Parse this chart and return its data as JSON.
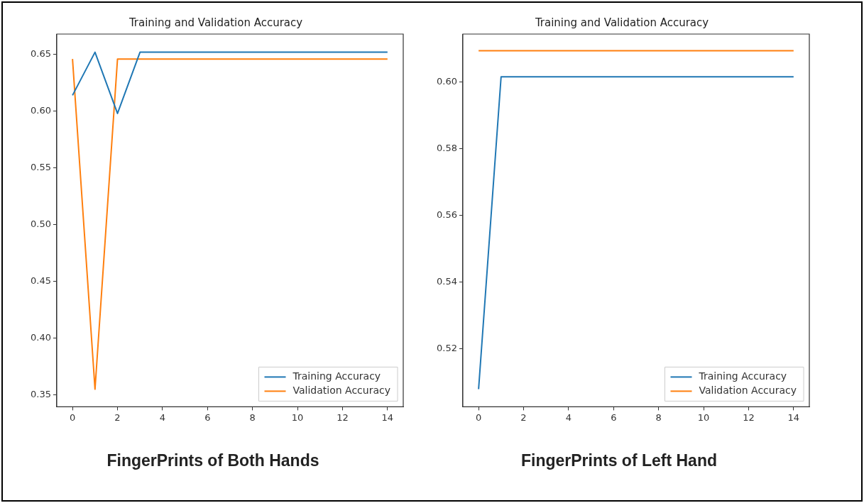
{
  "chart_data": [
    {
      "type": "line",
      "title": "Training and Validation Accuracy",
      "x": [
        0,
        1,
        2,
        3,
        4,
        5,
        6,
        7,
        8,
        9,
        10,
        11,
        12,
        13,
        14
      ],
      "series": [
        {
          "name": "Training Accuracy",
          "color": "#1f77b4",
          "values": [
            0.614,
            0.652,
            0.598,
            0.652,
            0.652,
            0.652,
            0.652,
            0.652,
            0.652,
            0.652,
            0.652,
            0.652,
            0.652,
            0.652,
            0.652
          ]
        },
        {
          "name": "Validation Accuracy",
          "color": "#ff7f0e",
          "values": [
            0.646,
            0.355,
            0.646,
            0.646,
            0.646,
            0.646,
            0.646,
            0.646,
            0.646,
            0.646,
            0.646,
            0.646,
            0.646,
            0.646,
            0.646
          ]
        }
      ],
      "xlim": [
        -0.7,
        14.7
      ],
      "xticks": [
        0,
        2,
        4,
        6,
        8,
        10,
        12,
        14
      ],
      "ylim": [
        0.3395,
        0.668
      ],
      "yticks": [
        0.35,
        {
          "value": 0.4,
          "label": "0.40"
        },
        0.45,
        {
          "value": 0.5,
          "label": "0.50"
        },
        0.55,
        {
          "value": 0.6,
          "label": "0.60"
        },
        0.65
      ],
      "grid": false,
      "legend": "bottom right",
      "marker": "none",
      "line_style": "solid",
      "annotations": [
        "FingerPrints of Both Hands"
      ]
    },
    {
      "type": "line",
      "title": "Training and Validation Accuracy",
      "x": [
        0,
        1,
        2,
        3,
        4,
        5,
        6,
        7,
        8,
        9,
        10,
        11,
        12,
        13,
        14
      ],
      "series": [
        {
          "name": "Training Accuracy",
          "color": "#1f77b4",
          "values": [
            0.508,
            0.6015,
            0.6015,
            0.6015,
            0.6015,
            0.6015,
            0.6015,
            0.6015,
            0.6015,
            0.6015,
            0.6015,
            0.6015,
            0.6015,
            0.6015,
            0.6015
          ]
        },
        {
          "name": "Validation Accuracy",
          "color": "#ff7f0e",
          "values": [
            0.6093,
            0.6093,
            0.6093,
            0.6093,
            0.6093,
            0.6093,
            0.6093,
            0.6093,
            0.6093,
            0.6093,
            0.6093,
            0.6093,
            0.6093,
            0.6093,
            0.6093
          ]
        }
      ],
      "xlim": [
        -0.7,
        14.7
      ],
      "xticks": [
        0,
        2,
        4,
        6,
        8,
        10,
        12,
        14
      ],
      "ylim": [
        0.5027,
        0.6143
      ],
      "yticks": [
        0.52,
        0.54,
        0.56,
        0.58,
        {
          "value": 0.6,
          "label": "0.60"
        }
      ],
      "grid": false,
      "legend": "bottom right",
      "marker": "none",
      "line_style": "solid",
      "annotations": [
        "FingerPrints of Left Hand"
      ]
    }
  ]
}
